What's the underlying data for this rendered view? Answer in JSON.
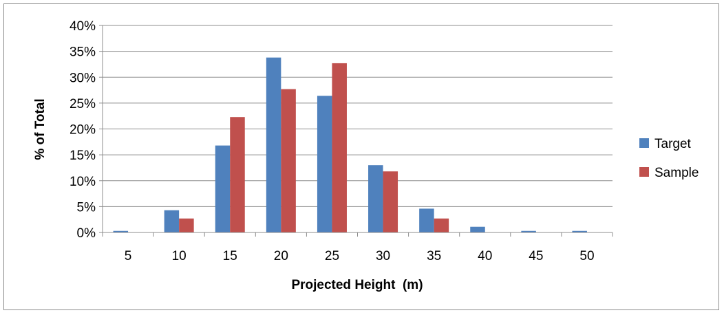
{
  "chart_data": {
    "type": "bar",
    "title": "",
    "xlabel": "Projected Height  (m)",
    "ylabel": "% of Total",
    "categories": [
      "5",
      "10",
      "15",
      "20",
      "25",
      "30",
      "35",
      "40",
      "45",
      "50"
    ],
    "series": [
      {
        "name": "Target",
        "color": "#4f81bd",
        "values": [
          0.3,
          4.3,
          16.8,
          33.8,
          26.4,
          13.0,
          4.6,
          1.1,
          0.3,
          0.3
        ]
      },
      {
        "name": "Sample",
        "color": "#c0504d",
        "values": [
          0,
          2.7,
          22.3,
          27.7,
          32.7,
          11.8,
          2.7,
          0,
          0,
          0
        ]
      }
    ],
    "ylim": [
      0,
      40
    ],
    "yticks": [
      "0%",
      "5%",
      "10%",
      "15%",
      "20%",
      "25%",
      "30%",
      "35%",
      "40%"
    ],
    "grid": true,
    "legend_position": "right"
  }
}
